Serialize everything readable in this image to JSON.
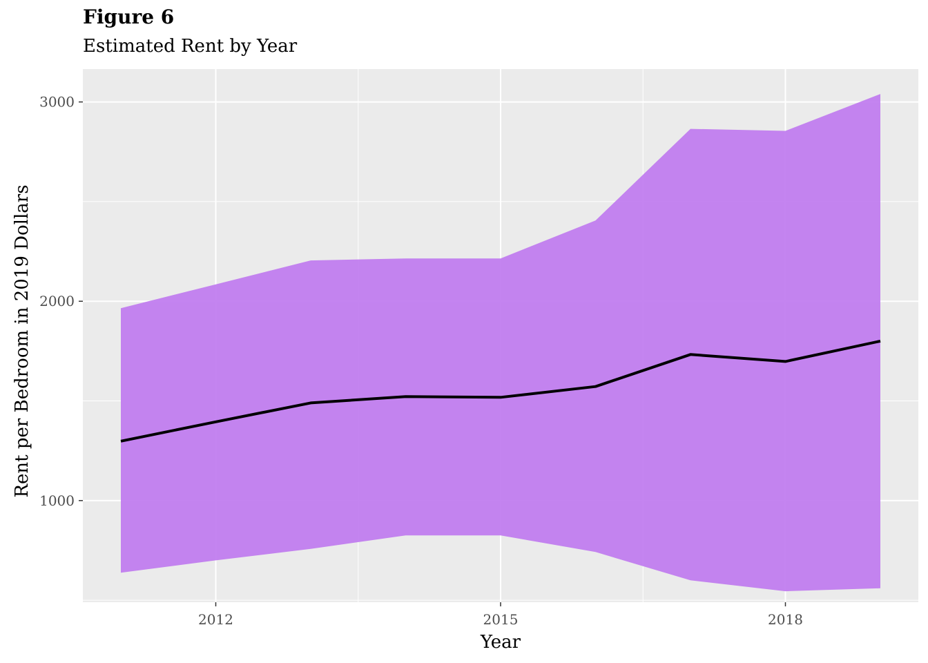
{
  "figure": {
    "title": "Figure 6",
    "subtitle": "Estimated Rent by Year"
  },
  "chart_data": {
    "type": "area",
    "xlabel": "Year",
    "ylabel": "Rent per Bedroom in 2019 Dollars",
    "xlim": [
      2010.6,
      2019.4
    ],
    "ylim": [
      490,
      3165
    ],
    "x_ticks": [
      2012,
      2015,
      2018
    ],
    "y_ticks": [
      1000,
      2000,
      3000
    ],
    "grid": true,
    "x": [
      2011,
      2012,
      2013,
      2014,
      2015,
      2016,
      2017,
      2018,
      2019
    ],
    "series": [
      {
        "values": [
          1298,
          1395,
          1490,
          1522,
          1518,
          1572,
          1733,
          1698,
          1800
        ]
      }
    ],
    "band": {
      "lower": [
        638,
        700,
        758,
        825,
        825,
        742,
        600,
        545,
        560
      ],
      "upper": [
        1965,
        2085,
        2205,
        2215,
        2215,
        2405,
        2865,
        2855,
        3040
      ]
    },
    "colors": {
      "panel": "#ebebeb",
      "grid_major": "#ffffff",
      "band_fill": "#bf7aef",
      "line": "#000000"
    }
  }
}
